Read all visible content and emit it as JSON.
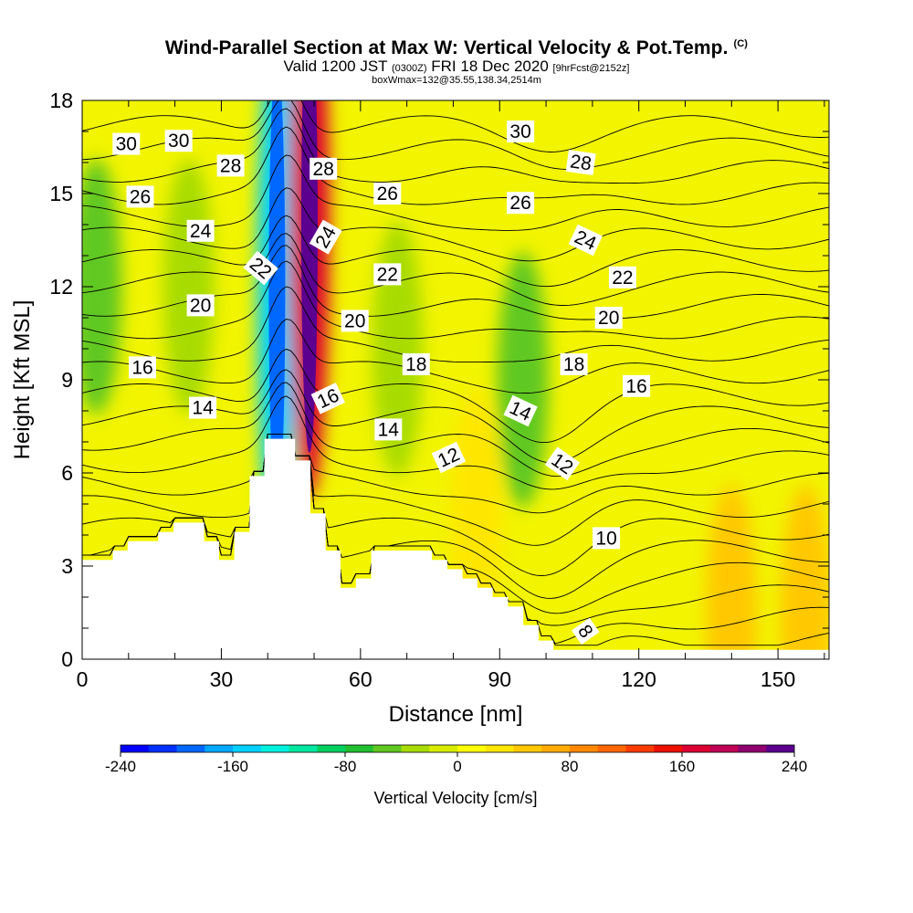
{
  "header": {
    "title": "Wind-Parallel Section at Max W: Vertical Velocity & Pot.Temp.",
    "copyright_mark": "(C)",
    "valid_prefix": "Valid 1200 JST",
    "valid_utc": "(0300Z)",
    "valid_date": "FRI 18 Dec 2020",
    "forecast_info": "[9hrFcst@2152z]",
    "box_info": "boxWmax=132@35.55,138.34,2514m"
  },
  "colors": {
    "background_field": "#f2f400",
    "terrain": "#ffffff",
    "contour": "#000000",
    "colorbar": [
      "#0000ff",
      "#0030ff",
      "#0068ff",
      "#00a8ff",
      "#00d0ff",
      "#00f0e0",
      "#00e8a0",
      "#00d060",
      "#20c030",
      "#60c820",
      "#a8dc00",
      "#d8ec00",
      "#ffff00",
      "#ffe600",
      "#ffc800",
      "#ffaa00",
      "#ff8800",
      "#ff6600",
      "#ff3c00",
      "#ee1100",
      "#dd0033",
      "#c00055",
      "#900070",
      "#5c0090"
    ]
  },
  "chart_data": {
    "type": "contour-section",
    "xlabel": "Distance [nm]",
    "ylabel": "Height [Kft MSL]",
    "xlim": [
      0,
      161
    ],
    "ylim": [
      0,
      18
    ],
    "x_ticks": [
      0,
      30,
      60,
      90,
      120,
      150
    ],
    "y_ticks": [
      0,
      3,
      6,
      9,
      12,
      15,
      18
    ],
    "colorbar": {
      "label": "Vertical Velocity [cm/s]",
      "range": [
        -240,
        240
      ],
      "tick_labels": [
        "-240",
        "-160",
        "-80",
        "0",
        "80",
        "160",
        "240"
      ]
    },
    "terrain_profile": [
      [
        0,
        3.2
      ],
      [
        6.6,
        3.2
      ],
      [
        6.6,
        3.5
      ],
      [
        9.8,
        3.5
      ],
      [
        9.8,
        3.8
      ],
      [
        16.4,
        3.8
      ],
      [
        16.4,
        4.1
      ],
      [
        19.7,
        4.1
      ],
      [
        19.7,
        4.4
      ],
      [
        26.3,
        4.4
      ],
      [
        26.3,
        3.8
      ],
      [
        29.5,
        3.8
      ],
      [
        29.5,
        3.2
      ],
      [
        32.8,
        3.2
      ],
      [
        32.8,
        4.1
      ],
      [
        36.1,
        4.1
      ],
      [
        36.1,
        5.9
      ],
      [
        39.3,
        5.9
      ],
      [
        39.3,
        7.1
      ],
      [
        45.9,
        7.1
      ],
      [
        45.9,
        6.4
      ],
      [
        49.2,
        6.4
      ],
      [
        49.2,
        4.7
      ],
      [
        52.5,
        4.7
      ],
      [
        52.5,
        3.5
      ],
      [
        55.7,
        3.5
      ],
      [
        55.7,
        2.3
      ],
      [
        59,
        2.3
      ],
      [
        59,
        2.6
      ],
      [
        62.3,
        2.6
      ],
      [
        62.3,
        3.5
      ],
      [
        75.4,
        3.5
      ],
      [
        75.4,
        3.2
      ],
      [
        78.7,
        3.2
      ],
      [
        78.7,
        2.9
      ],
      [
        82,
        2.9
      ],
      [
        82,
        2.6
      ],
      [
        85.2,
        2.6
      ],
      [
        85.2,
        2.3
      ],
      [
        88.5,
        2.3
      ],
      [
        88.5,
        2
      ],
      [
        91.8,
        2
      ],
      [
        91.8,
        1.7
      ],
      [
        95.1,
        1.7
      ],
      [
        95.1,
        1.1
      ],
      [
        98.4,
        1.1
      ],
      [
        98.4,
        0.6
      ],
      [
        101.6,
        0.6
      ],
      [
        101.6,
        0.3
      ],
      [
        161,
        0.3
      ],
      [
        161,
        0
      ],
      [
        0,
        0
      ]
    ],
    "w_features": [
      {
        "x": 42,
        "y": 12,
        "w": -150
      },
      {
        "x": 49,
        "y": 14,
        "w": 170
      },
      {
        "x": 3,
        "y": 12,
        "w": -55
      },
      {
        "x": 23,
        "y": 12,
        "w": -40
      },
      {
        "x": 68,
        "y": 10,
        "w": -35
      },
      {
        "x": 85,
        "y": 4.5,
        "w": 35
      },
      {
        "x": 95,
        "y": 9,
        "w": -45
      },
      {
        "x": 140,
        "y": 1.5,
        "w": 40
      },
      {
        "x": 156,
        "y": 1.5,
        "w": 50
      }
    ],
    "contour_labels": [
      {
        "text": "30",
        "x": 9.5,
        "y": 16.6,
        "angle": 0
      },
      {
        "text": "30",
        "x": 20.8,
        "y": 16.7,
        "angle": 0
      },
      {
        "text": "28",
        "x": 32,
        "y": 15.9,
        "angle": 0
      },
      {
        "text": "26",
        "x": 12.5,
        "y": 14.9,
        "angle": 0
      },
      {
        "text": "24",
        "x": 25.5,
        "y": 13.8,
        "angle": 0
      },
      {
        "text": "22",
        "x": 38.5,
        "y": 12.6,
        "angle": 40
      },
      {
        "text": "20",
        "x": 25.5,
        "y": 11.4,
        "angle": 0
      },
      {
        "text": "16",
        "x": 13,
        "y": 9.4,
        "angle": 0
      },
      {
        "text": "14",
        "x": 26,
        "y": 8.1,
        "angle": 0
      },
      {
        "text": "28",
        "x": 52,
        "y": 15.8,
        "angle": 0
      },
      {
        "text": "24",
        "x": 52.5,
        "y": 13.6,
        "angle": -60
      },
      {
        "text": "16",
        "x": 53,
        "y": 8.4,
        "angle": -25
      },
      {
        "text": "20",
        "x": 58.8,
        "y": 10.9,
        "angle": 0
      },
      {
        "text": "22",
        "x": 65.8,
        "y": 12.4,
        "angle": 0
      },
      {
        "text": "26",
        "x": 65.8,
        "y": 15.0,
        "angle": 0
      },
      {
        "text": "18",
        "x": 72,
        "y": 9.5,
        "angle": 0
      },
      {
        "text": "14",
        "x": 66,
        "y": 7.4,
        "angle": 0
      },
      {
        "text": "12",
        "x": 79,
        "y": 6.5,
        "angle": -25
      },
      {
        "text": "30",
        "x": 94.5,
        "y": 17.0,
        "angle": 0
      },
      {
        "text": "28",
        "x": 107.5,
        "y": 16.0,
        "angle": 8
      },
      {
        "text": "26",
        "x": 94.5,
        "y": 14.7,
        "angle": 0
      },
      {
        "text": "24",
        "x": 108.5,
        "y": 13.5,
        "angle": 25
      },
      {
        "text": "22",
        "x": 116.5,
        "y": 12.3,
        "angle": 0
      },
      {
        "text": "20",
        "x": 113.5,
        "y": 11.0,
        "angle": 0
      },
      {
        "text": "18",
        "x": 106,
        "y": 9.5,
        "angle": 0
      },
      {
        "text": "16",
        "x": 119.5,
        "y": 8.8,
        "angle": 0
      },
      {
        "text": "14",
        "x": 94.5,
        "y": 8.0,
        "angle": 25
      },
      {
        "text": "12",
        "x": 103.5,
        "y": 6.3,
        "angle": 35
      },
      {
        "text": "10",
        "x": 113,
        "y": 3.9,
        "angle": 0
      },
      {
        "text": "8",
        "x": 108.5,
        "y": 0.9,
        "angle": 55
      }
    ],
    "theta_levels": [
      8,
      9,
      10,
      11,
      12,
      13,
      14,
      15,
      16,
      17,
      18,
      19,
      20,
      21,
      22,
      23,
      24,
      25,
      26,
      27,
      28,
      29,
      30,
      31
    ]
  }
}
